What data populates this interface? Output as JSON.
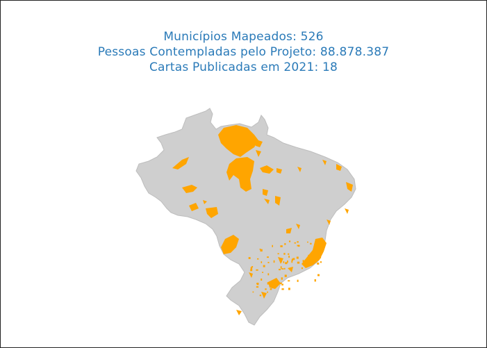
{
  "header": {
    "municipios": "Municípios Mapeados: 526",
    "pessoas": "Pessoas Contempladas pelo Projeto: 88.878.387",
    "cartas": "Cartas Publicadas em 2021: 18"
  },
  "colors": {
    "text": "#2a7ab8",
    "land": "#cfcfcf",
    "land_border": "#bdbdbd",
    "highlight": "#ffa500",
    "frame": "#222222"
  },
  "map": {
    "country": "Brasil",
    "highlight_meaning": "municípios mapeados",
    "highlighted_count": 526
  }
}
